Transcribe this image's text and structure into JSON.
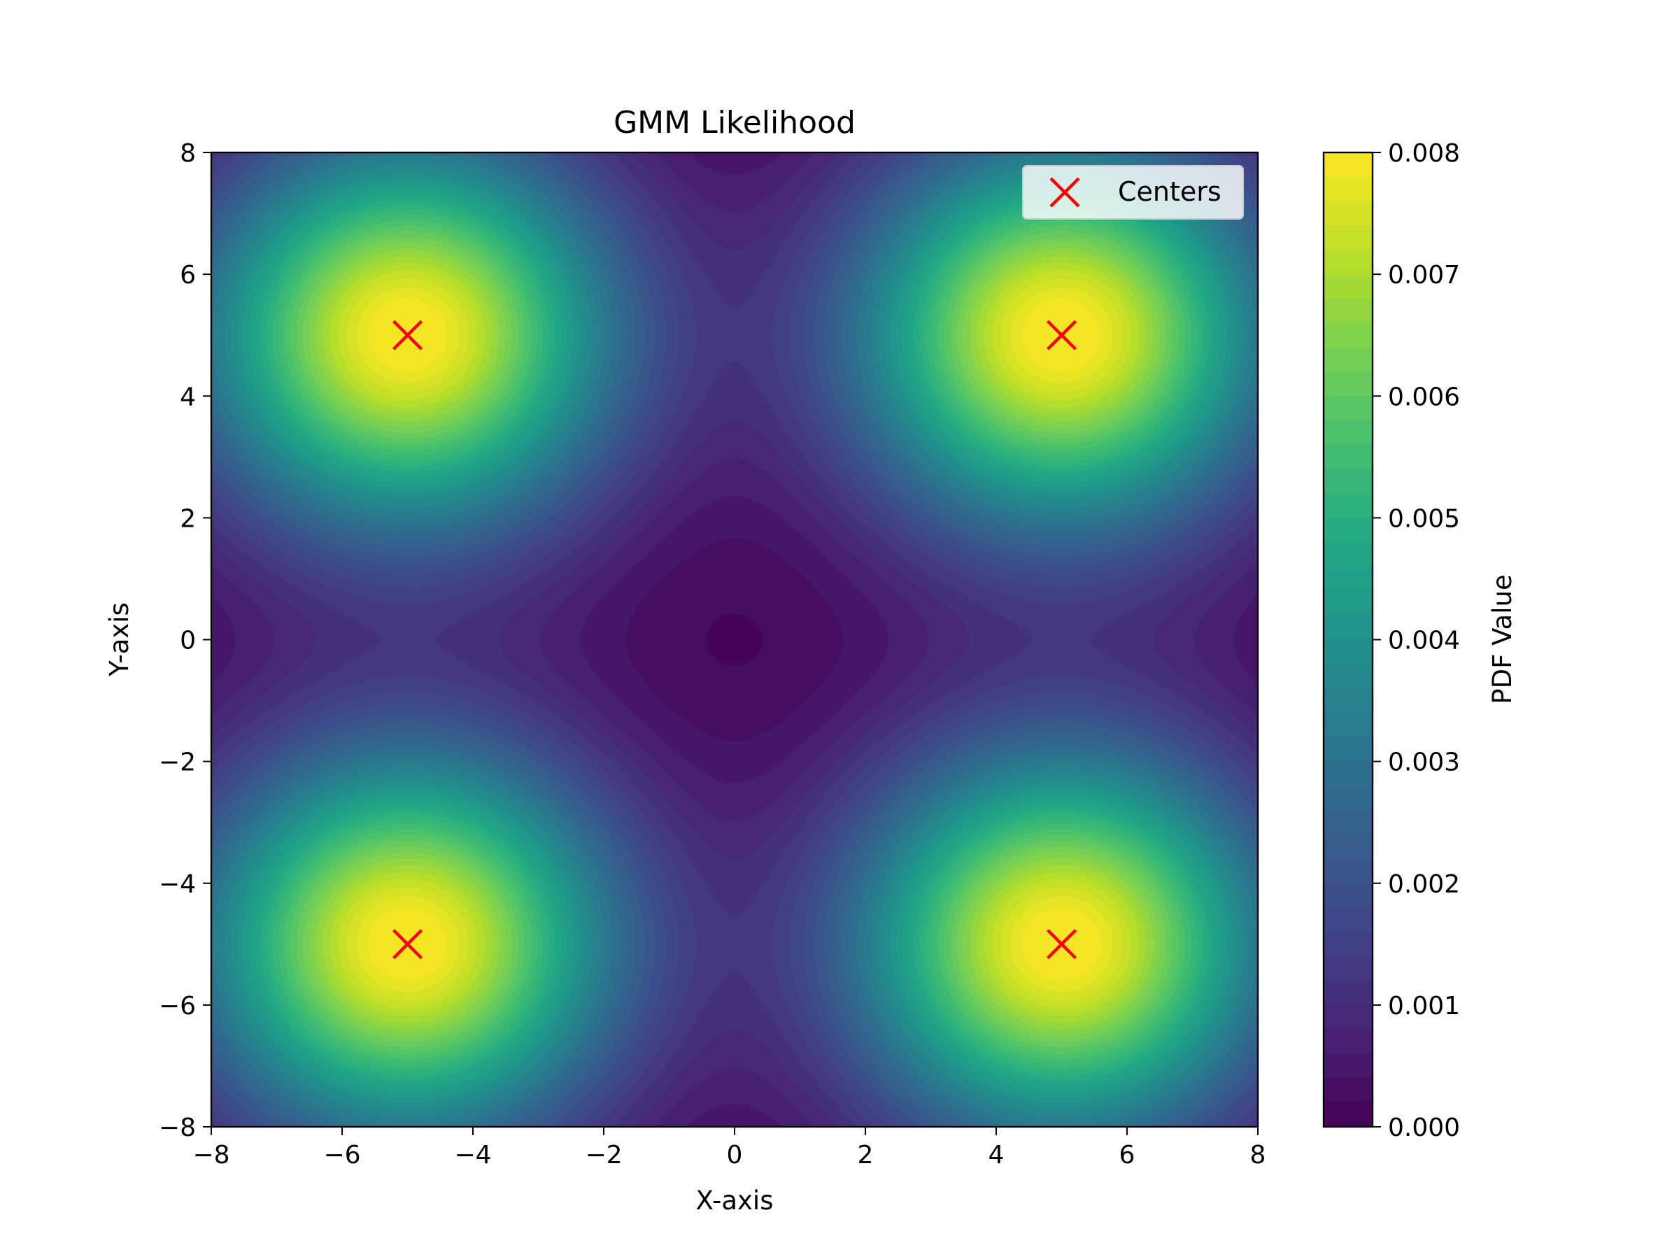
{
  "chart_data": {
    "type": "heatmap",
    "subtype": "filled-contour",
    "title": "GMM Likelihood",
    "xlabel": "X-axis",
    "ylabel": "Y-axis",
    "xlim": [
      -8,
      8
    ],
    "ylim": [
      -8,
      8
    ],
    "x_ticks": [
      -8,
      -6,
      -4,
      -2,
      0,
      2,
      4,
      6,
      8
    ],
    "y_ticks": [
      -8,
      -6,
      -4,
      -2,
      0,
      2,
      4,
      6,
      8
    ],
    "x_tick_labels": [
      "−8",
      "−6",
      "−4",
      "−2",
      "0",
      "2",
      "4",
      "6",
      "8"
    ],
    "y_tick_labels": [
      "−8",
      "−6",
      "−4",
      "−2",
      "0",
      "2",
      "4",
      "6",
      "8"
    ],
    "colormap": "viridis",
    "grid": false,
    "colorbar": {
      "label": "PDF Value",
      "range": [
        0.0,
        0.008
      ],
      "ticks": [
        0.0,
        0.001,
        0.002,
        0.003,
        0.004,
        0.005,
        0.006,
        0.007,
        0.008
      ],
      "tick_labels": [
        "0.000",
        "0.001",
        "0.002",
        "0.003",
        "0.004",
        "0.005",
        "0.006",
        "0.007",
        "0.008"
      ]
    },
    "gaussian_components": [
      {
        "mean": [
          -5,
          5
        ],
        "sigma": 2.2,
        "peak": 0.0081
      },
      {
        "mean": [
          5,
          5
        ],
        "sigma": 2.2,
        "peak": 0.0081
      },
      {
        "mean": [
          -5,
          -5
        ],
        "sigma": 2.2,
        "peak": 0.0081
      },
      {
        "mean": [
          5,
          -5
        ],
        "sigma": 2.2,
        "peak": 0.0081
      }
    ],
    "centers": {
      "name": "Centers",
      "marker": "x",
      "color": "#ff0000",
      "points": [
        [
          -5,
          5
        ],
        [
          5,
          5
        ],
        [
          -5,
          -5
        ],
        [
          5,
          -5
        ]
      ]
    },
    "legend": {
      "position": "top-right",
      "entries": [
        "Centers"
      ]
    }
  }
}
